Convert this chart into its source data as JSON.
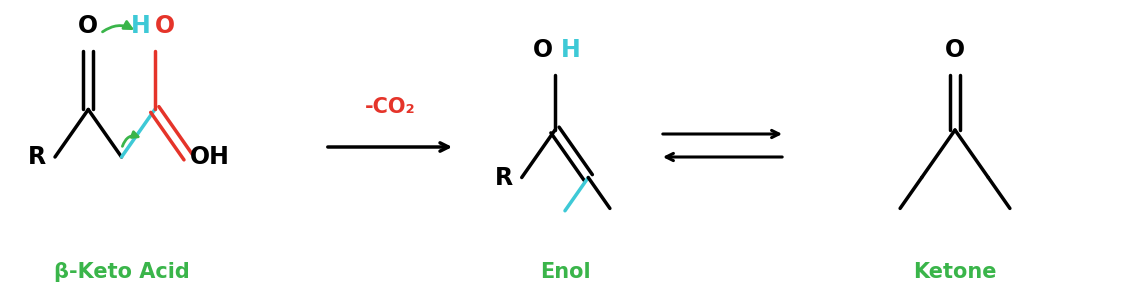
{
  "bg_color": "#ffffff",
  "black": "#000000",
  "green": "#3ab54a",
  "red": "#e5342a",
  "cyan": "#3ec9d6",
  "label_beta_keto": "β-Keto Acid",
  "label_enol": "Enol",
  "label_ketone": "Ketone",
  "label_reaction": "-CO₂",
  "figsize": [
    11.34,
    2.92
  ],
  "dpi": 100
}
